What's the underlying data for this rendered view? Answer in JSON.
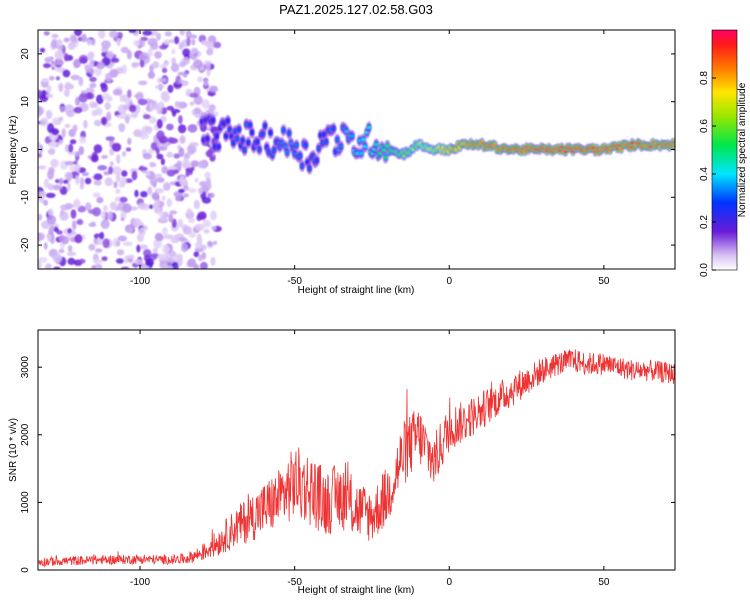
{
  "title": "PAZ1.2025.127.02.58.G03",
  "chart_data": [
    {
      "type": "heatmap",
      "title": "PAZ1.2025.127.02.58.G03",
      "xlabel": "Height of straight line (km)",
      "ylabel": "Frequency (Hz)",
      "xlim": [
        -133,
        73
      ],
      "ylim": [
        -25,
        25
      ],
      "x_ticks": [
        -100,
        -50,
        0,
        50
      ],
      "x_tick_labels": [
        "-100",
        "-50",
        "0",
        "50"
      ],
      "y_ticks": [
        -20,
        -10,
        0,
        10,
        20
      ],
      "y_tick_labels": [
        "-20",
        "-10",
        "0",
        "10",
        "20"
      ],
      "colorbar": {
        "label": "Normalized spectral amplitude",
        "range": [
          0,
          1
        ],
        "ticks": [
          0.0,
          0.2,
          0.4,
          0.6,
          0.8
        ],
        "tick_labels": [
          "0.0",
          "0.2",
          "0.4",
          "0.6",
          "0.8"
        ]
      },
      "ridge": {
        "x": [
          -80,
          -70,
          -60,
          -50,
          -45,
          -40,
          -35,
          -30,
          -25,
          -20,
          -15,
          -10,
          -5,
          0,
          5,
          10,
          20,
          30,
          40,
          50,
          60,
          73
        ],
        "frequency": [
          4,
          3,
          2,
          1,
          -2,
          3,
          2,
          1,
          2,
          0,
          -1,
          1,
          0,
          0,
          1,
          1,
          0,
          0,
          0,
          0,
          1,
          1
        ],
        "amplitude": [
          0.25,
          0.3,
          0.3,
          0.35,
          0.3,
          0.3,
          0.35,
          0.4,
          0.45,
          0.55,
          0.6,
          0.65,
          0.7,
          0.8,
          0.85,
          0.85,
          0.9,
          0.95,
          0.95,
          0.95,
          0.9,
          0.85
        ]
      },
      "noise_region_x": [
        -133,
        -75
      ]
    },
    {
      "type": "line",
      "xlabel": "Height of straight line (km)",
      "ylabel": "SNR (10 * v/v)",
      "xlim": [
        -133,
        73
      ],
      "ylim": [
        0,
        3550
      ],
      "x_ticks": [
        -100,
        -50,
        0,
        50
      ],
      "x_tick_labels": [
        "-100",
        "-50",
        "0",
        "50"
      ],
      "y_ticks": [
        0,
        1000,
        2000,
        3000
      ],
      "y_tick_labels": [
        "0",
        "1000",
        "2000",
        "3000"
      ],
      "color": "#ee3333",
      "x": [
        -133,
        -120,
        -110,
        -100,
        -90,
        -85,
        -80,
        -75,
        -70,
        -65,
        -60,
        -55,
        -50,
        -45,
        -40,
        -35,
        -30,
        -25,
        -20,
        -15,
        -10,
        -5,
        0,
        5,
        10,
        15,
        20,
        25,
        30,
        35,
        40,
        45,
        50,
        55,
        60,
        65,
        73
      ],
      "y": [
        120,
        140,
        150,
        160,
        150,
        170,
        250,
        400,
        600,
        750,
        900,
        1050,
        1300,
        1200,
        1000,
        1100,
        900,
        800,
        1100,
        1700,
        2000,
        1600,
        2100,
        2200,
        2350,
        2500,
        2650,
        2800,
        2950,
        3050,
        3100,
        3050,
        3050,
        3000,
        2950,
        2950,
        2900
      ],
      "noise_amplitude": [
        70,
        70,
        70,
        70,
        70,
        80,
        120,
        200,
        280,
        350,
        400,
        450,
        550,
        550,
        500,
        500,
        450,
        400,
        450,
        500,
        450,
        400,
        350,
        300,
        300,
        250,
        250,
        220,
        200,
        180,
        180,
        170,
        170,
        160,
        160,
        160,
        160
      ]
    }
  ]
}
